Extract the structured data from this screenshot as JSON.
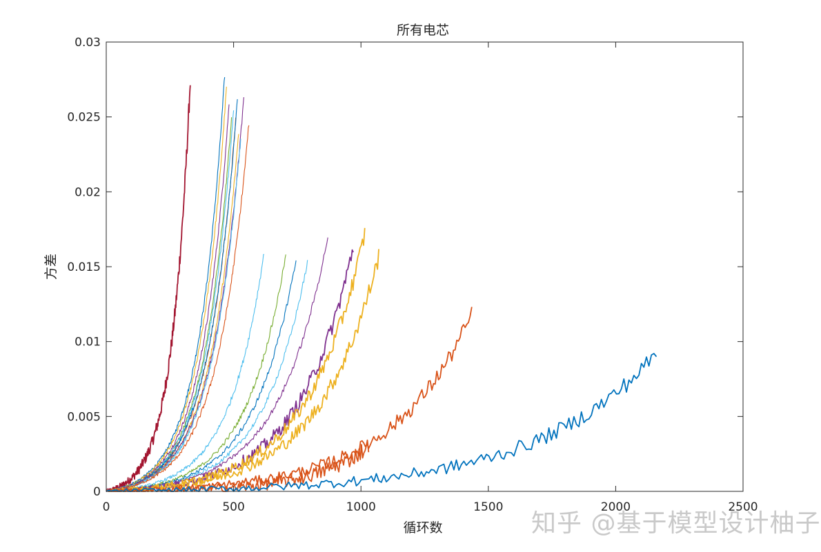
{
  "chart_data": {
    "type": "line",
    "title": "所有电芯",
    "xlabel": "循环数",
    "ylabel": "方差",
    "xlim": [
      0,
      2500
    ],
    "ylim": [
      0,
      0.03
    ],
    "xticks": [
      0,
      500,
      1000,
      1500,
      2000,
      2500
    ],
    "xtick_labels": [
      "0",
      "500",
      "1000",
      "1500",
      "2000",
      "2500"
    ],
    "yticks": [
      0,
      0.005,
      0.01,
      0.015,
      0.02,
      0.025,
      0.03
    ],
    "ytick_labels": [
      "0",
      "0.005",
      "0.01",
      "0.015",
      "0.02",
      "0.025",
      "0.03"
    ],
    "grid": false,
    "legend": "none",
    "series": [
      {
        "color": "#a2142f",
        "end_x": 330,
        "end_y": 0.0275,
        "bold": true
      },
      {
        "color": "#0072bd",
        "end_x": 465,
        "end_y": 0.0278
      },
      {
        "color": "#edb120",
        "end_x": 472,
        "end_y": 0.027
      },
      {
        "color": "#7e2f8e",
        "end_x": 482,
        "end_y": 0.0258
      },
      {
        "color": "#77ac30",
        "end_x": 492,
        "end_y": 0.025
      },
      {
        "color": "#4dbeee",
        "end_x": 500,
        "end_y": 0.0255
      },
      {
        "color": "#d95319",
        "end_x": 508,
        "end_y": 0.0248
      },
      {
        "color": "#0072bd",
        "end_x": 515,
        "end_y": 0.0262
      },
      {
        "color": "#edb120",
        "end_x": 520,
        "end_y": 0.024
      },
      {
        "color": "#7e2f8e",
        "end_x": 540,
        "end_y": 0.0263
      },
      {
        "color": "#4dbeee",
        "end_x": 528,
        "end_y": 0.0235
      },
      {
        "color": "#d95319",
        "end_x": 560,
        "end_y": 0.0246
      },
      {
        "color": "#4dbeee",
        "end_x": 620,
        "end_y": 0.016
      },
      {
        "color": "#77ac30",
        "end_x": 705,
        "end_y": 0.0158
      },
      {
        "color": "#0072bd",
        "end_x": 745,
        "end_y": 0.0155
      },
      {
        "color": "#4dbeee",
        "end_x": 790,
        "end_y": 0.0153
      },
      {
        "color": "#7e2f8e",
        "end_x": 870,
        "end_y": 0.017
      },
      {
        "color": "#7e2f8e",
        "end_x": 970,
        "end_y": 0.0163,
        "bold": true
      },
      {
        "color": "#edb120",
        "end_x": 1015,
        "end_y": 0.0172,
        "bold": true
      },
      {
        "color": "#edb120",
        "end_x": 1070,
        "end_y": 0.0157,
        "bold": true
      },
      {
        "color": "#d95319",
        "end_x": 1030,
        "end_y": 0.003,
        "bold": true
      },
      {
        "color": "#d95319",
        "end_x": 1435,
        "end_y": 0.0118,
        "bold": true
      },
      {
        "color": "#0072bd",
        "end_x": 2160,
        "end_y": 0.0092,
        "bold": true
      }
    ]
  },
  "watermark": "知乎 @基于模型设计柚子"
}
